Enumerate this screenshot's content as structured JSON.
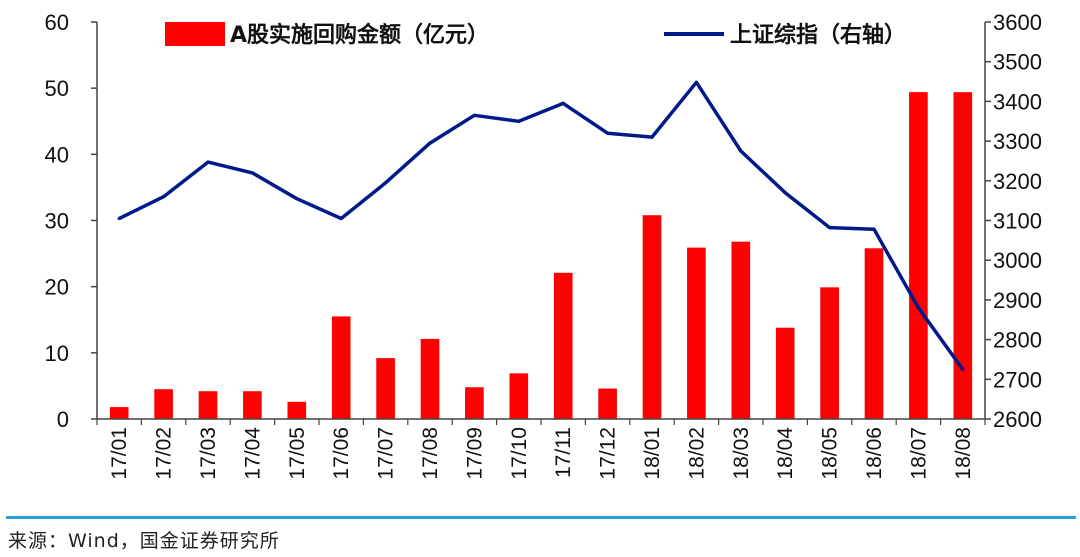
{
  "chart_data": {
    "type": "bar+line",
    "categories": [
      "17/01",
      "17/02",
      "17/03",
      "17/04",
      "17/05",
      "17/06",
      "17/07",
      "17/08",
      "17/09",
      "17/10",
      "17/11",
      "17/12",
      "18/01",
      "18/02",
      "18/03",
      "18/04",
      "18/05",
      "18/06",
      "18/07",
      "18/08"
    ],
    "series": [
      {
        "name": "A股实施回购金额（亿元）",
        "type": "bar",
        "axis": "left",
        "color": "#ff0000",
        "values": [
          1.8,
          4.5,
          4.2,
          4.2,
          2.6,
          15.5,
          9.2,
          12.1,
          4.8,
          6.9,
          22.1,
          4.6,
          30.8,
          25.9,
          26.8,
          13.8,
          19.9,
          25.8,
          49.4,
          49.4
        ]
      },
      {
        "name": "上证综指（右轴）",
        "type": "line",
        "axis": "right",
        "color": "#001a8c",
        "values": [
          3105,
          3160,
          3247,
          3220,
          3155,
          3105,
          3195,
          3295,
          3365,
          3350,
          3395,
          3320,
          3310,
          3448,
          3275,
          3170,
          3082,
          3078,
          2880,
          2725
        ]
      }
    ],
    "ylim_left": [
      0,
      60
    ],
    "yticks_left": [
      "0",
      "10",
      "20",
      "30",
      "40",
      "50",
      "60"
    ],
    "ylim_right": [
      2600,
      3600
    ],
    "yticks_right": [
      "2600",
      "2700",
      "2800",
      "2900",
      "3000",
      "3100",
      "3200",
      "3300",
      "3400",
      "3500",
      "3600"
    ],
    "legend_position": "top"
  },
  "source_text": "来源：Wind，国金证券研究所"
}
